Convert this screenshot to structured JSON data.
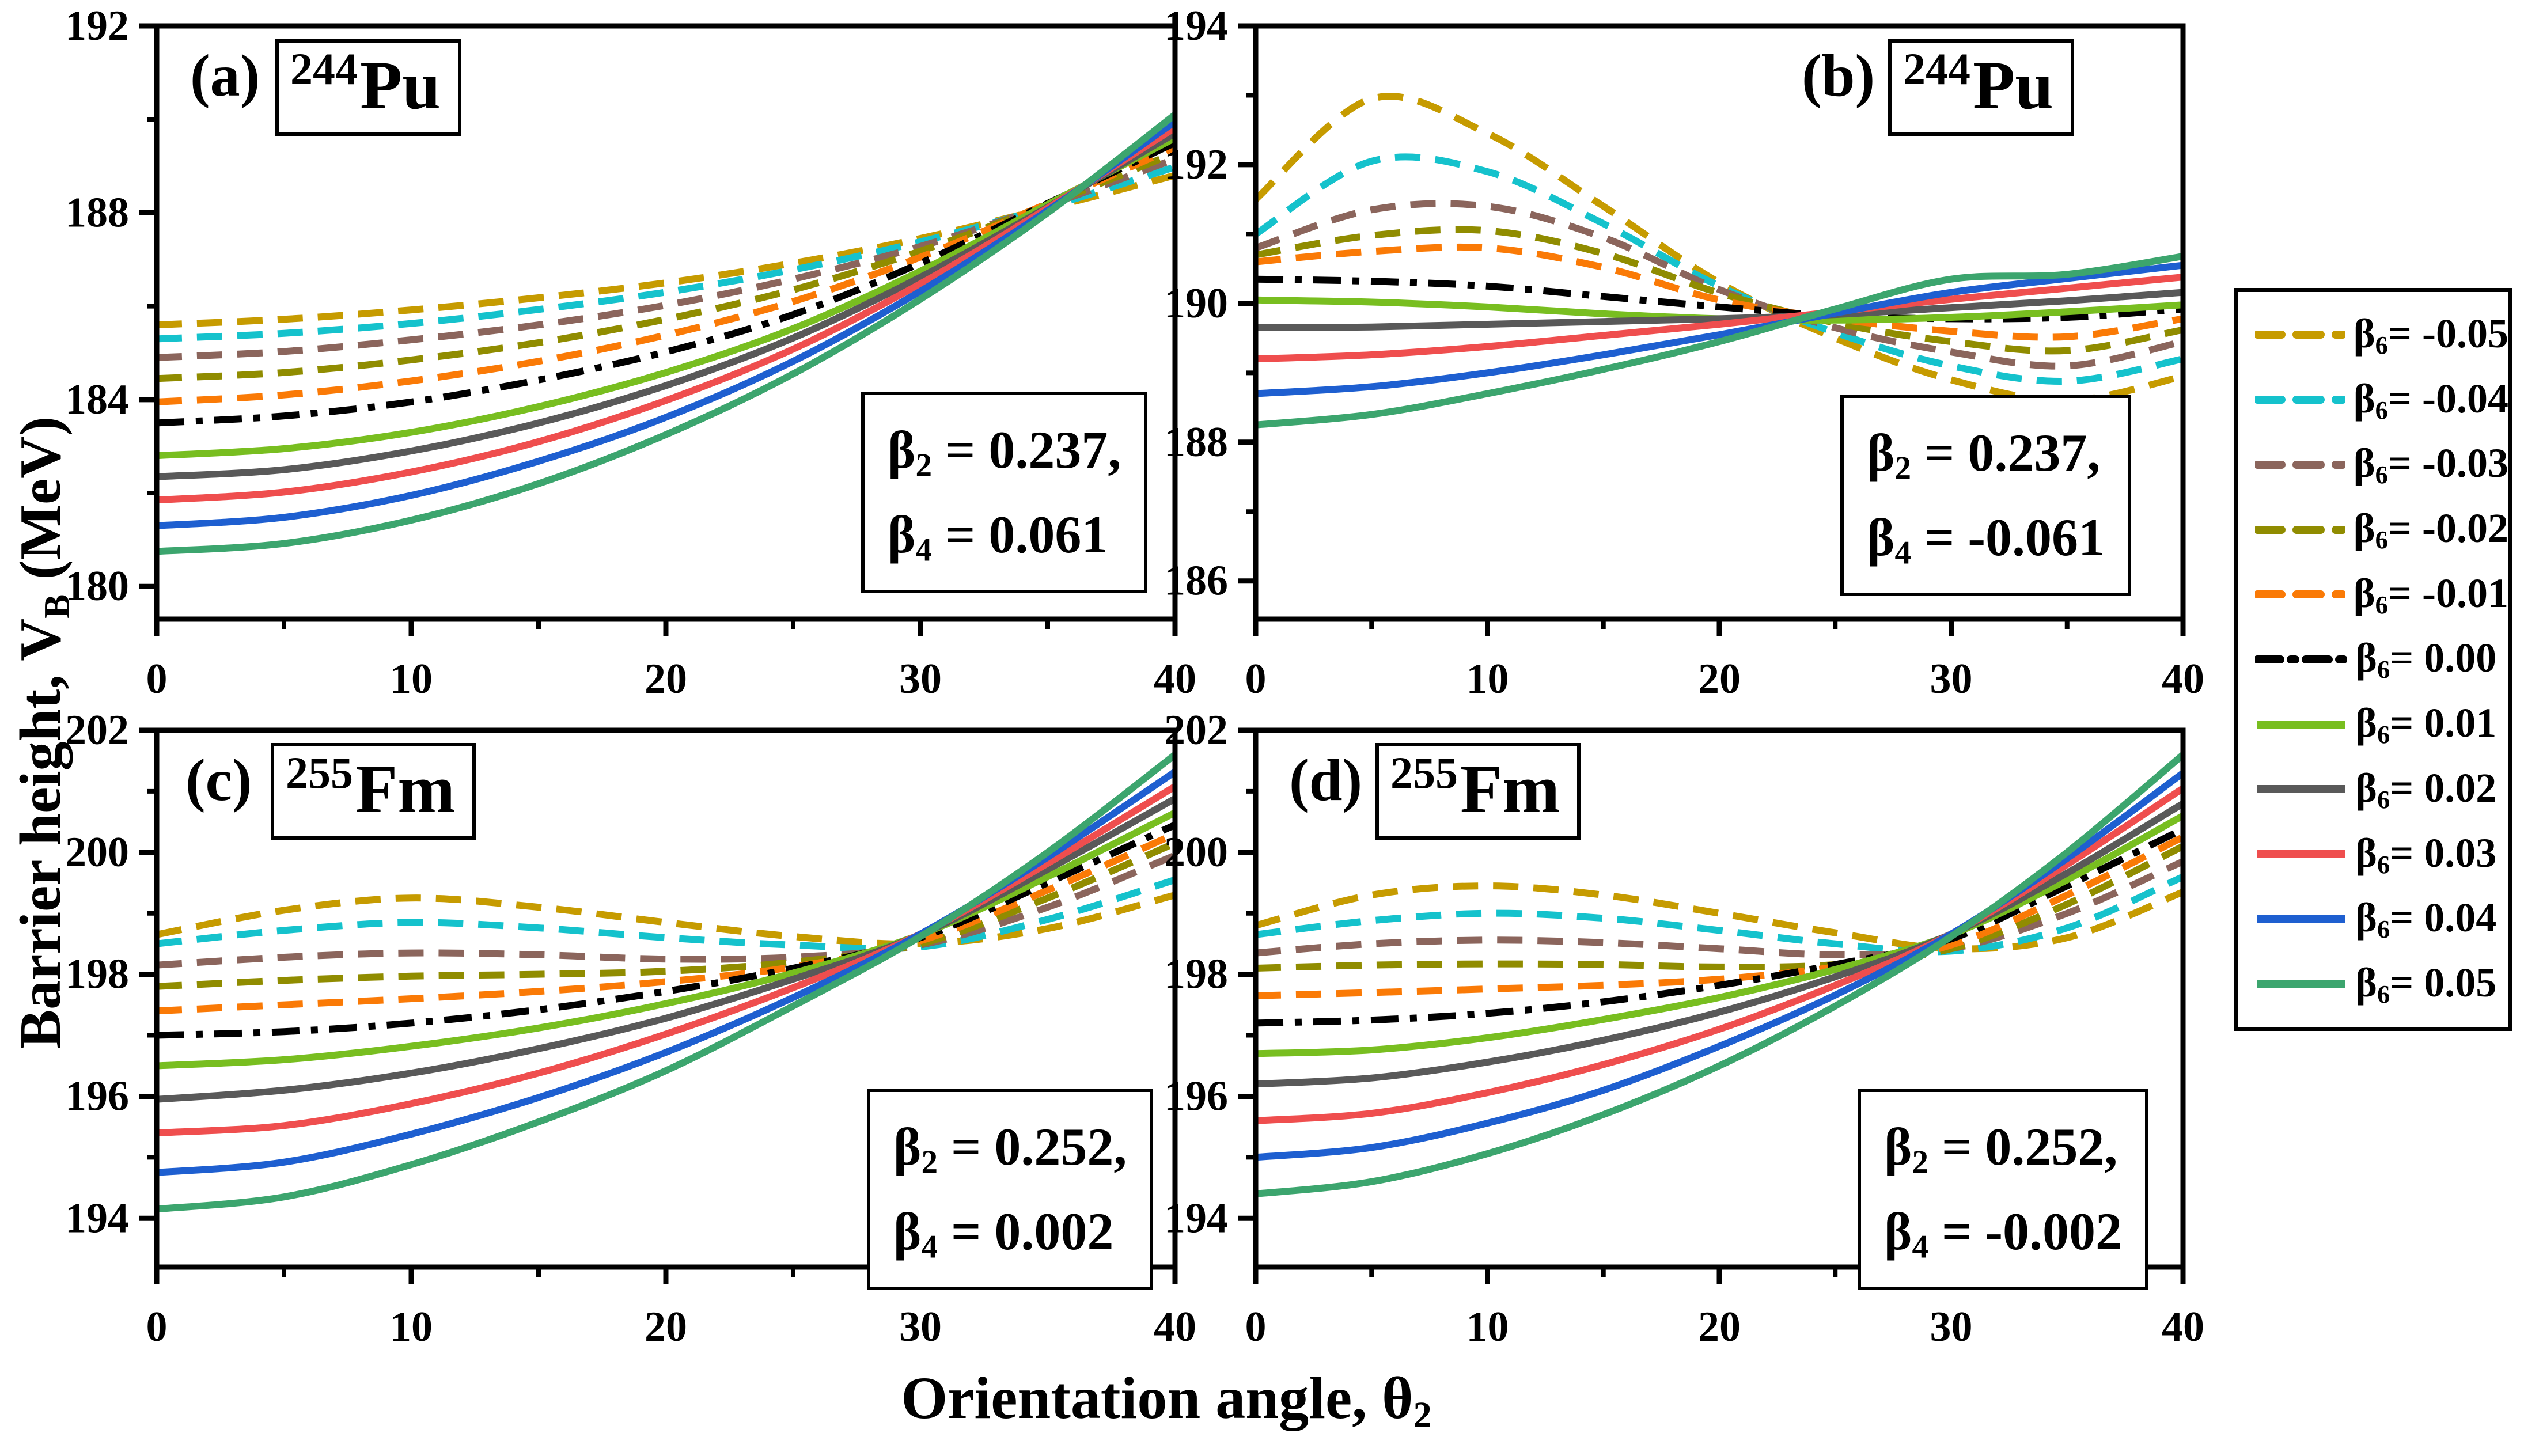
{
  "figure": {
    "background": "#FFFFFF",
    "x_axis_title": {
      "pre": "Orientation angle, ",
      "symbol": "θ",
      "sub": "2"
    },
    "y_axis_title": {
      "pre": "Barrier height, V",
      "sub": "B",
      "post": " (MeV)"
    }
  },
  "legend": {
    "items": [
      {
        "symbol": "β",
        "sub": "6",
        "eq": "= ",
        "value": "-0.05",
        "color": "#C69B00",
        "line_style": "dashed"
      },
      {
        "symbol": "β",
        "sub": "6",
        "eq": "= ",
        "value": "-0.04",
        "color": "#15C2CC",
        "line_style": "dashed"
      },
      {
        "symbol": "β",
        "sub": "6",
        "eq": "= ",
        "value": "-0.03",
        "color": "#8B655C",
        "line_style": "dashed"
      },
      {
        "symbol": "β",
        "sub": "6",
        "eq": "= ",
        "value": "-0.02",
        "color": "#908C00",
        "line_style": "dashed"
      },
      {
        "symbol": "β",
        "sub": "6",
        "eq": "= ",
        "value": "-0.01",
        "color": "#FA7A06",
        "line_style": "dashed"
      },
      {
        "symbol": "β",
        "sub": "6",
        "eq": "= ",
        "value": "0.00",
        "color": "#000000",
        "line_style": "dashdot"
      },
      {
        "symbol": "β",
        "sub": "6",
        "eq": "= ",
        "value": "0.01",
        "color": "#78BE20",
        "line_style": "solid"
      },
      {
        "symbol": "β",
        "sub": "6",
        "eq": "= ",
        "value": "0.02",
        "color": "#595959",
        "line_style": "solid"
      },
      {
        "symbol": "β",
        "sub": "6",
        "eq": "= ",
        "value": "0.03",
        "color": "#EF4E4E",
        "line_style": "solid"
      },
      {
        "symbol": "β",
        "sub": "6",
        "eq": "= ",
        "value": "0.04",
        "color": "#1E5FD0",
        "line_style": "solid"
      },
      {
        "symbol": "β",
        "sub": "6",
        "eq": "= ",
        "value": "0.05",
        "color": "#3CA56E",
        "line_style": "solid"
      }
    ]
  },
  "chart_data": [
    {
      "type": "line",
      "panel": "a",
      "panel_label": "(a)",
      "nuclide": {
        "mass": "244",
        "symbol": "Pu"
      },
      "annotation": {
        "line1": {
          "symbol": "β",
          "sub": "2",
          "rest": " = 0.237,"
        },
        "line2": {
          "symbol": "β",
          "sub": "4",
          "rest": " = 0.061"
        }
      },
      "xlim": [
        0,
        40
      ],
      "ylim": [
        179.3,
        192
      ],
      "x_major_ticks": [
        0,
        10,
        20,
        30,
        40
      ],
      "x_minor_ticks": [
        5,
        15,
        25,
        35
      ],
      "y_major_ticks": [
        180,
        184,
        188,
        192
      ],
      "y_minor_ticks": [
        182,
        186,
        190
      ],
      "x": [
        0,
        5,
        10,
        15,
        20,
        25,
        30,
        35,
        40
      ],
      "series": [
        {
          "beta6": -0.05,
          "values": [
            185.6,
            185.72,
            185.92,
            186.18,
            186.5,
            186.92,
            187.45,
            188.1,
            188.8
          ]
        },
        {
          "beta6": -0.04,
          "values": [
            185.3,
            185.42,
            185.63,
            185.93,
            186.3,
            186.78,
            187.38,
            188.12,
            188.98
          ]
        },
        {
          "beta6": -0.03,
          "values": [
            184.9,
            185.03,
            185.28,
            185.6,
            186.02,
            186.58,
            187.28,
            188.16,
            189.15
          ]
        },
        {
          "beta6": -0.02,
          "values": [
            184.45,
            184.58,
            184.85,
            185.22,
            185.72,
            186.35,
            187.18,
            188.18,
            189.28
          ]
        },
        {
          "beta6": -0.01,
          "values": [
            183.95,
            184.1,
            184.4,
            184.82,
            185.38,
            186.1,
            187.05,
            188.2,
            189.4
          ]
        },
        {
          "beta6": 0.0,
          "values": [
            183.5,
            183.65,
            183.95,
            184.42,
            185.02,
            185.82,
            186.92,
            188.2,
            189.5
          ]
        },
        {
          "beta6": 0.01,
          "values": [
            182.8,
            182.95,
            183.3,
            183.85,
            184.58,
            185.52,
            186.75,
            188.18,
            189.6
          ]
        },
        {
          "beta6": 0.02,
          "values": [
            182.35,
            182.5,
            182.9,
            183.5,
            184.3,
            185.32,
            186.62,
            188.12,
            189.7
          ]
        },
        {
          "beta6": 0.03,
          "values": [
            181.85,
            182.02,
            182.45,
            183.1,
            183.98,
            185.08,
            186.48,
            188.1,
            189.82
          ]
        },
        {
          "beta6": 0.04,
          "values": [
            181.3,
            181.48,
            181.95,
            182.68,
            183.62,
            184.82,
            186.32,
            188.05,
            189.95
          ]
        },
        {
          "beta6": 0.05,
          "values": [
            180.75,
            180.92,
            181.42,
            182.2,
            183.25,
            184.55,
            186.15,
            188.0,
            190.1
          ]
        }
      ]
    },
    {
      "type": "line",
      "panel": "b",
      "panel_label": "(b)",
      "nuclide": {
        "mass": "244",
        "symbol": "Pu"
      },
      "annotation": {
        "line1": {
          "symbol": "β",
          "sub": "2",
          "rest": " = 0.237,"
        },
        "line2": {
          "symbol": "β",
          "sub": "4",
          "rest": " = -0.061"
        }
      },
      "xlim": [
        0,
        40
      ],
      "ylim": [
        185.45,
        194
      ],
      "x_major_ticks": [
        0,
        10,
        20,
        30,
        40
      ],
      "x_minor_ticks": [
        5,
        15,
        25,
        35
      ],
      "y_major_ticks": [
        186,
        188,
        190,
        192,
        194
      ],
      "y_minor_ticks": [
        187,
        189,
        191,
        193
      ],
      "x": [
        0,
        5,
        10,
        15,
        20,
        25,
        30,
        35,
        40
      ],
      "series": [
        {
          "beta6": -0.05,
          "values": [
            191.5,
            192.95,
            192.45,
            191.4,
            190.3,
            189.5,
            188.9,
            188.6,
            188.95
          ]
        },
        {
          "beta6": -0.04,
          "values": [
            191.0,
            192.05,
            191.9,
            191.15,
            190.25,
            189.58,
            189.1,
            188.88,
            189.2
          ]
        },
        {
          "beta6": -0.03,
          "values": [
            190.8,
            191.35,
            191.4,
            190.95,
            190.2,
            189.65,
            189.3,
            189.1,
            189.45
          ]
        },
        {
          "beta6": -0.02,
          "values": [
            190.7,
            190.98,
            191.05,
            190.72,
            190.15,
            189.72,
            189.45,
            189.32,
            189.62
          ]
        },
        {
          "beta6": -0.01,
          "values": [
            190.6,
            190.75,
            190.8,
            190.52,
            190.05,
            189.78,
            189.6,
            189.52,
            189.78
          ]
        },
        {
          "beta6": 0.0,
          "values": [
            190.35,
            190.32,
            190.25,
            190.1,
            189.95,
            189.82,
            189.78,
            189.8,
            189.92
          ]
        },
        {
          "beta6": 0.01,
          "values": [
            190.05,
            190.02,
            189.95,
            189.85,
            189.78,
            189.76,
            189.8,
            189.88,
            189.98
          ]
        },
        {
          "beta6": 0.02,
          "values": [
            189.65,
            189.66,
            189.7,
            189.74,
            189.78,
            189.84,
            189.94,
            190.04,
            190.16
          ]
        },
        {
          "beta6": 0.03,
          "values": [
            189.2,
            189.26,
            189.38,
            189.54,
            189.7,
            189.88,
            190.06,
            190.22,
            190.38
          ]
        },
        {
          "beta6": 0.04,
          "values": [
            188.7,
            188.8,
            189.0,
            189.26,
            189.55,
            189.86,
            190.16,
            190.36,
            190.55
          ]
        },
        {
          "beta6": 0.05,
          "values": [
            188.25,
            188.4,
            188.7,
            189.05,
            189.45,
            189.92,
            190.35,
            190.42,
            190.68
          ]
        }
      ]
    },
    {
      "type": "line",
      "panel": "c",
      "panel_label": "(c)",
      "nuclide": {
        "mass": "255",
        "symbol": "Fm"
      },
      "annotation": {
        "line1": {
          "symbol": "β",
          "sub": "2",
          "rest": " = 0.252,"
        },
        "line2": {
          "symbol": "β",
          "sub": "4",
          "rest": " = 0.002"
        }
      },
      "xlim": [
        0,
        40
      ],
      "ylim": [
        193.2,
        202
      ],
      "x_major_ticks": [
        0,
        10,
        20,
        30,
        40
      ],
      "x_minor_ticks": [
        5,
        15,
        25,
        35
      ],
      "y_major_ticks": [
        194,
        196,
        198,
        200,
        202
      ],
      "y_minor_ticks": [
        195,
        197,
        199,
        201
      ],
      "x": [
        0,
        5,
        10,
        15,
        20,
        25,
        30,
        35,
        40
      ],
      "series": [
        {
          "beta6": -0.05,
          "values": [
            198.65,
            199.05,
            199.25,
            199.1,
            198.85,
            198.62,
            198.5,
            198.75,
            199.3
          ]
        },
        {
          "beta6": -0.04,
          "values": [
            198.5,
            198.72,
            198.85,
            198.76,
            198.6,
            198.48,
            198.45,
            198.9,
            199.55
          ]
        },
        {
          "beta6": -0.03,
          "values": [
            198.15,
            198.28,
            198.35,
            198.32,
            198.25,
            198.28,
            198.48,
            199.1,
            199.95
          ]
        },
        {
          "beta6": -0.02,
          "values": [
            197.8,
            197.9,
            197.97,
            198.0,
            198.05,
            198.2,
            198.5,
            199.25,
            200.15
          ]
        },
        {
          "beta6": -0.01,
          "values": [
            197.4,
            197.5,
            197.6,
            197.72,
            197.88,
            198.12,
            198.55,
            199.38,
            200.3
          ]
        },
        {
          "beta6": 0.0,
          "values": [
            197.0,
            197.06,
            197.2,
            197.42,
            197.72,
            198.1,
            198.6,
            199.5,
            200.45
          ]
        },
        {
          "beta6": 0.01,
          "values": [
            196.5,
            196.6,
            196.82,
            197.12,
            197.52,
            198.02,
            198.65,
            199.6,
            200.65
          ]
        },
        {
          "beta6": 0.02,
          "values": [
            195.95,
            196.1,
            196.38,
            196.78,
            197.28,
            197.92,
            198.65,
            199.72,
            200.88
          ]
        },
        {
          "beta6": 0.03,
          "values": [
            195.4,
            195.52,
            195.88,
            196.38,
            197.02,
            197.78,
            198.66,
            199.82,
            201.08
          ]
        },
        {
          "beta6": 0.04,
          "values": [
            194.75,
            194.92,
            195.38,
            195.98,
            196.72,
            197.62,
            198.66,
            199.92,
            201.32
          ]
        },
        {
          "beta6": 0.05,
          "values": [
            194.15,
            194.35,
            194.88,
            195.58,
            196.42,
            197.48,
            198.62,
            200.0,
            201.6
          ]
        }
      ]
    },
    {
      "type": "line",
      "panel": "d",
      "panel_label": "(d)",
      "nuclide": {
        "mass": "255",
        "symbol": "Fm"
      },
      "annotation": {
        "line1": {
          "symbol": "β",
          "sub": "2",
          "rest": " = 0.252,"
        },
        "line2": {
          "symbol": "β",
          "sub": "4",
          "rest": " = -0.002"
        }
      },
      "xlim": [
        0,
        40
      ],
      "ylim": [
        193.2,
        202
      ],
      "x_major_ticks": [
        0,
        10,
        20,
        30,
        40
      ],
      "x_minor_ticks": [
        5,
        15,
        25,
        35
      ],
      "y_major_ticks": [
        194,
        196,
        198,
        200,
        202
      ],
      "y_minor_ticks": [
        195,
        197,
        199,
        201
      ],
      "x": [
        0,
        5,
        10,
        15,
        20,
        25,
        30,
        35,
        40
      ],
      "series": [
        {
          "beta6": -0.05,
          "values": [
            198.8,
            199.3,
            199.45,
            199.3,
            199.0,
            198.68,
            198.42,
            198.6,
            199.35
          ]
        },
        {
          "beta6": -0.04,
          "values": [
            198.65,
            198.88,
            199.0,
            198.92,
            198.72,
            198.5,
            198.38,
            198.76,
            199.6
          ]
        },
        {
          "beta6": -0.03,
          "values": [
            198.35,
            198.5,
            198.56,
            198.52,
            198.42,
            198.32,
            198.42,
            199.0,
            199.85
          ]
        },
        {
          "beta6": -0.02,
          "values": [
            198.1,
            198.15,
            198.17,
            198.16,
            198.12,
            198.16,
            198.42,
            199.15,
            200.1
          ]
        },
        {
          "beta6": -0.01,
          "values": [
            197.65,
            197.7,
            197.76,
            197.82,
            197.92,
            198.12,
            198.48,
            199.3,
            200.25
          ]
        },
        {
          "beta6": 0.0,
          "values": [
            197.2,
            197.25,
            197.36,
            197.55,
            197.82,
            198.16,
            198.58,
            199.45,
            200.38
          ]
        },
        {
          "beta6": 0.01,
          "values": [
            196.7,
            196.76,
            196.96,
            197.26,
            197.62,
            198.08,
            198.65,
            199.55,
            200.6
          ]
        },
        {
          "beta6": 0.02,
          "values": [
            196.2,
            196.3,
            196.56,
            196.92,
            197.38,
            197.96,
            198.66,
            199.66,
            200.8
          ]
        },
        {
          "beta6": 0.03,
          "values": [
            195.6,
            195.72,
            196.06,
            196.52,
            197.1,
            197.82,
            198.66,
            199.8,
            201.05
          ]
        },
        {
          "beta6": 0.04,
          "values": [
            195.0,
            195.16,
            195.56,
            196.1,
            196.82,
            197.66,
            198.66,
            199.9,
            201.3
          ]
        },
        {
          "beta6": 0.05,
          "values": [
            194.4,
            194.6,
            195.06,
            195.7,
            196.5,
            197.48,
            198.62,
            200.0,
            201.6
          ]
        }
      ]
    }
  ]
}
